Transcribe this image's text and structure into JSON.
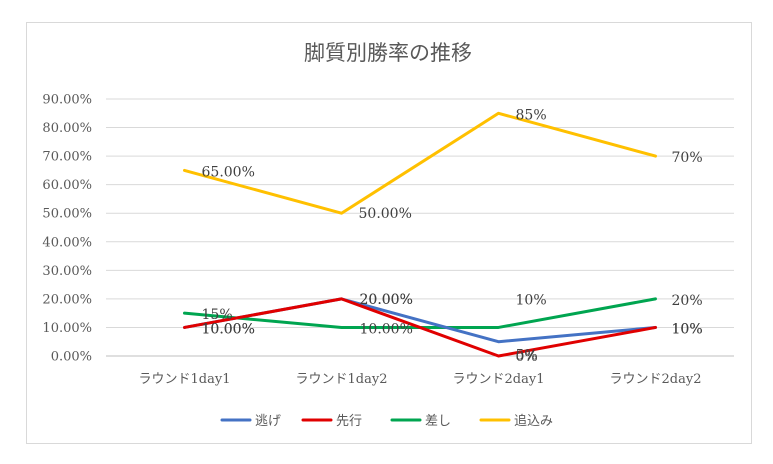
{
  "chart_data": {
    "type": "line",
    "title": "脚質別勝率の推移",
    "categories": [
      "ラウンド1day1",
      "ラウンド1day2",
      "ラウンド2day1",
      "ラウンド2day2"
    ],
    "ylim": [
      0,
      0.9
    ],
    "yticks": [
      "0.00%",
      "10.00%",
      "20.00%",
      "30.00%",
      "40.00%",
      "50.00%",
      "60.00%",
      "70.00%",
      "80.00%",
      "90.00%"
    ],
    "grid": true,
    "legend_position": "bottom",
    "series": [
      {
        "name": "逃げ",
        "color": "#4472c4",
        "values": [
          0.1,
          0.2,
          0.05,
          0.1
        ],
        "labels": [
          "10.00%",
          "20.00%",
          "5%",
          "10%"
        ]
      },
      {
        "name": "先行",
        "color": "#e00000",
        "values": [
          0.1,
          0.2,
          0.0,
          0.1
        ],
        "labels": [
          "10.00%",
          "20.00%",
          "0%",
          "10%"
        ]
      },
      {
        "name": "差し",
        "color": "#00a550",
        "values": [
          0.15,
          0.1,
          0.1,
          0.2
        ],
        "labels": [
          "15%",
          "10.00%",
          "10%",
          "20%"
        ]
      },
      {
        "name": "追込み",
        "color": "#ffc000",
        "values": [
          0.65,
          0.5,
          0.85,
          0.7
        ],
        "labels": [
          "65.00%",
          "50.00%",
          "85%",
          "70%"
        ]
      }
    ]
  }
}
